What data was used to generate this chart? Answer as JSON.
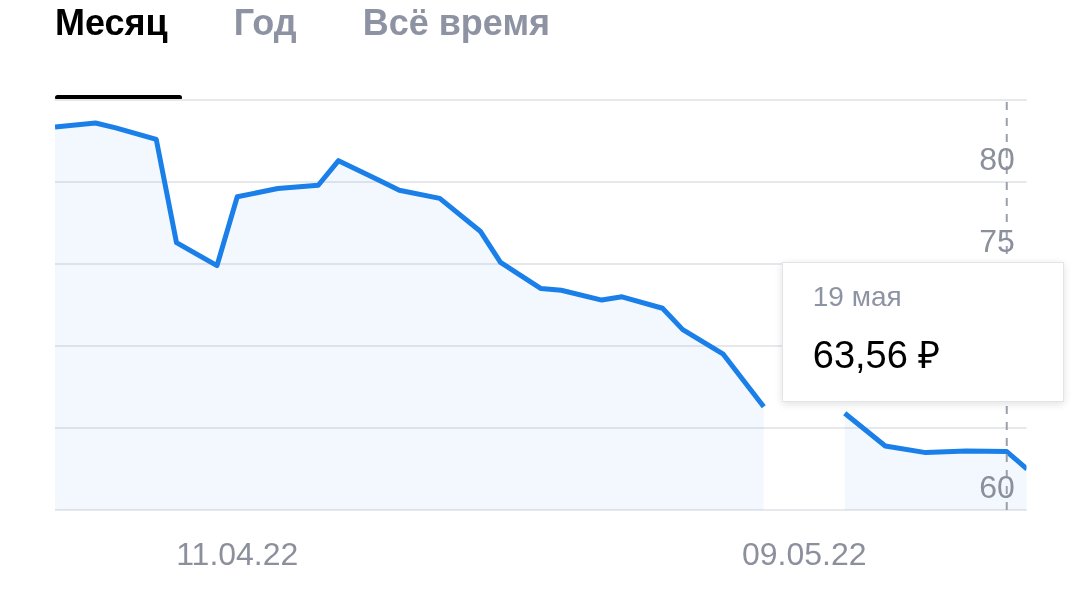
{
  "chart_data": {
    "type": "area",
    "color": "#1a7fe8",
    "x": [
      "2022-04-02",
      "2022-04-04",
      "2022-04-05",
      "2022-04-07",
      "2022-04-08",
      "2022-04-10",
      "2022-04-11",
      "2022-04-13",
      "2022-04-15",
      "2022-04-16",
      "2022-04-18",
      "2022-04-19",
      "2022-04-21",
      "2022-04-23",
      "2022-04-24",
      "2022-04-26",
      "2022-04-27",
      "2022-04-29",
      "2022-04-30",
      "2022-05-02",
      "2022-05-03",
      "2022-05-05",
      "2022-05-07",
      "2022-05-08",
      "2022-05-10",
      "2022-05-11",
      "2022-05-13",
      "2022-05-15",
      "2022-05-17",
      "2022-05-19",
      "2022-05-20"
    ],
    "values": [
      83.35,
      83.6,
      83.3,
      82.6,
      76.3,
      74.9,
      79.1,
      79.6,
      79.8,
      81.3,
      80.1,
      79.5,
      79.0,
      77.0,
      75.1,
      73.5,
      73.4,
      72.8,
      73.0,
      72.3,
      71.0,
      69.5,
      66.3,
      null,
      null,
      65.9,
      63.9,
      63.5,
      63.6,
      63.56,
      62.5
    ],
    "xlim": [
      "2022-04-02",
      "2022-05-20"
    ],
    "xticks": [
      {
        "value": "2022-04-11",
        "label": "11.04.22"
      },
      {
        "value": "2022-05-09",
        "label": "09.05.22"
      }
    ],
    "ylim": [
      60,
      85
    ],
    "yticks": [
      60,
      {
        "value": 65,
        "label": null
      },
      {
        "value": 70,
        "label": null
      },
      75,
      80,
      {
        "value": 85,
        "label": null
      }
    ],
    "grid": "y",
    "ref_lines": [
      {
        "axis": "x",
        "value": "2022-05-19",
        "color": "#9aa0aa",
        "line_style": "dashed"
      }
    ],
    "annotations": [
      "Месяц",
      "Год",
      "Всё время",
      {
        "text": "19 мая\n63,56 ₽",
        "x": "2022-05-19",
        "y": 63.56
      }
    ]
  }
}
